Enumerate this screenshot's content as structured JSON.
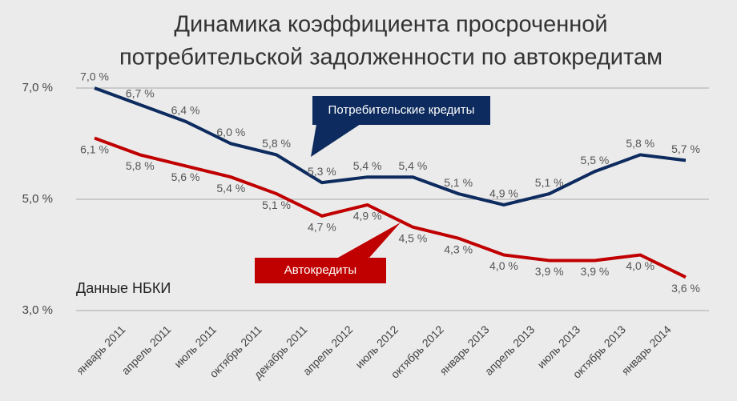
{
  "chart_data": {
    "type": "line",
    "title": [
      "Динамика коэффициента просроченной",
      "потребительской задолженности по автокредитам"
    ],
    "categories": [
      null,
      "январь 2011",
      "апрель 2011",
      "июль 2011",
      "октябрь 2011",
      "декабрь 2011",
      "апрель 2012",
      "июль 2012",
      "октябрь 2012",
      "январь 2013",
      "апрель 2013",
      "июль 2013",
      "октябрь 2013",
      "январь 2014"
    ],
    "series": [
      {
        "name": "Потребительские кредиты",
        "color": "#0d2b5e",
        "values": [
          7.0,
          6.7,
          6.4,
          6.0,
          5.8,
          5.3,
          5.4,
          5.4,
          5.1,
          4.9,
          5.1,
          5.5,
          5.8,
          5.7
        ],
        "value_labels": [
          "7,0 %",
          "6,7 %",
          "6,4 %",
          "6,0 %",
          "5,8 %",
          "5,3 %",
          "5,4 %",
          "5,4 %",
          "5,1 %",
          "4,9 %",
          "5,1 %",
          "5,5 %",
          "5,8 %",
          "5,7 %"
        ]
      },
      {
        "name": "Автокредиты",
        "color": "#c00000",
        "values": [
          6.1,
          5.8,
          5.6,
          5.4,
          5.1,
          4.7,
          4.9,
          4.5,
          4.3,
          4.0,
          3.9,
          3.9,
          4.0,
          3.6
        ],
        "value_labels": [
          "6,1 %",
          "5,8 %",
          "5,6 %",
          "5,4 %",
          "5,1 %",
          "4,7 %",
          "4,9 %",
          "4,5 %",
          "4,3 %",
          "4,0 %",
          "3,9 %",
          "3,9 %",
          "4,0 %",
          "3,6 %"
        ]
      }
    ],
    "ylim": [
      3.0,
      7.0
    ],
    "yticks": [
      {
        "value": 3.0,
        "label": "3,0 %"
      },
      {
        "value": 5.0,
        "label": "5,0 %"
      },
      {
        "value": 7.0,
        "label": "7,0 %"
      }
    ],
    "grid": true,
    "annotation": "Данные НБКИ"
  }
}
